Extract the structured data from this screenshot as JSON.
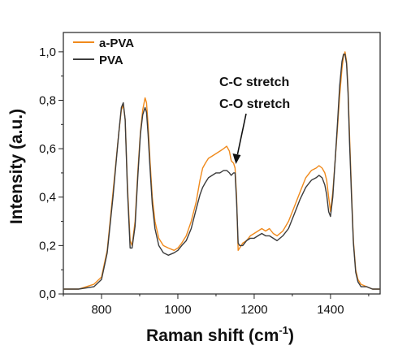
{
  "chart_data": {
    "type": "line",
    "xlabel": "Raman shift (cm",
    "xlabel_sup": "-1",
    "xlabel_close": ")",
    "ylabel": "Intensity (a.u.)",
    "xlim": [
      700,
      1530
    ],
    "ylim": [
      0,
      1.08
    ],
    "x_ticks": [
      800,
      1000,
      1200,
      1400
    ],
    "x_tick_labels": [
      "800",
      "1000",
      "1200",
      "1400"
    ],
    "y_ticks": [
      0,
      0.2,
      0.4,
      0.6,
      0.8,
      1.0
    ],
    "y_tick_labels": [
      "0,0",
      "0,2",
      "0,4",
      "0,6",
      "0,8",
      "1,0"
    ],
    "legend_position": "top-left",
    "grid": false,
    "series": [
      {
        "name": "a-PVA",
        "color": "#f08a1c",
        "x": [
          700,
          740,
          780,
          800,
          815,
          830,
          845,
          852,
          857,
          862,
          868,
          875,
          880,
          888,
          895,
          902,
          908,
          914,
          918,
          922,
          927,
          933,
          940,
          950,
          962,
          975,
          990,
          1000,
          1010,
          1022,
          1035,
          1048,
          1058,
          1065,
          1072,
          1080,
          1090,
          1100,
          1110,
          1120,
          1128,
          1135,
          1140,
          1146,
          1150,
          1154,
          1158,
          1162,
          1170,
          1180,
          1190,
          1200,
          1210,
          1220,
          1230,
          1240,
          1250,
          1260,
          1275,
          1290,
          1305,
          1320,
          1335,
          1350,
          1362,
          1370,
          1378,
          1385,
          1390,
          1395,
          1400,
          1406,
          1412,
          1418,
          1424,
          1430,
          1434,
          1438,
          1442,
          1446,
          1450,
          1455,
          1460,
          1466,
          1472,
          1480,
          1495,
          1510,
          1530
        ],
        "y": [
          0.02,
          0.02,
          0.04,
          0.07,
          0.18,
          0.42,
          0.66,
          0.76,
          0.78,
          0.72,
          0.45,
          0.22,
          0.2,
          0.3,
          0.5,
          0.67,
          0.76,
          0.81,
          0.79,
          0.7,
          0.55,
          0.4,
          0.3,
          0.23,
          0.2,
          0.19,
          0.18,
          0.19,
          0.21,
          0.24,
          0.3,
          0.38,
          0.47,
          0.52,
          0.54,
          0.56,
          0.57,
          0.58,
          0.59,
          0.6,
          0.61,
          0.59,
          0.55,
          0.54,
          0.52,
          0.4,
          0.18,
          0.19,
          0.21,
          0.22,
          0.24,
          0.25,
          0.26,
          0.27,
          0.26,
          0.27,
          0.25,
          0.24,
          0.26,
          0.3,
          0.36,
          0.42,
          0.48,
          0.51,
          0.52,
          0.53,
          0.52,
          0.5,
          0.47,
          0.4,
          0.34,
          0.42,
          0.55,
          0.68,
          0.82,
          0.93,
          0.98,
          1.0,
          0.96,
          0.85,
          0.65,
          0.42,
          0.22,
          0.1,
          0.06,
          0.04,
          0.03,
          0.02,
          0.02
        ]
      },
      {
        "name": "PVA",
        "color": "#3c3c3c",
        "x": [
          700,
          740,
          780,
          800,
          815,
          830,
          845,
          852,
          857,
          862,
          868,
          875,
          880,
          888,
          895,
          902,
          908,
          914,
          918,
          922,
          927,
          933,
          940,
          950,
          962,
          975,
          990,
          1000,
          1010,
          1022,
          1035,
          1048,
          1058,
          1065,
          1072,
          1080,
          1090,
          1100,
          1110,
          1120,
          1128,
          1135,
          1140,
          1146,
          1150,
          1154,
          1158,
          1162,
          1170,
          1180,
          1190,
          1200,
          1210,
          1220,
          1230,
          1240,
          1250,
          1260,
          1275,
          1290,
          1305,
          1320,
          1335,
          1350,
          1362,
          1370,
          1378,
          1385,
          1390,
          1395,
          1400,
          1406,
          1412,
          1418,
          1424,
          1430,
          1434,
          1438,
          1442,
          1446,
          1450,
          1455,
          1460,
          1466,
          1472,
          1480,
          1495,
          1510,
          1530
        ],
        "y": [
          0.02,
          0.02,
          0.03,
          0.06,
          0.17,
          0.4,
          0.66,
          0.77,
          0.79,
          0.72,
          0.43,
          0.19,
          0.19,
          0.28,
          0.48,
          0.66,
          0.74,
          0.77,
          0.75,
          0.66,
          0.52,
          0.37,
          0.27,
          0.2,
          0.17,
          0.16,
          0.17,
          0.18,
          0.2,
          0.22,
          0.27,
          0.35,
          0.41,
          0.44,
          0.46,
          0.48,
          0.49,
          0.5,
          0.5,
          0.51,
          0.51,
          0.5,
          0.49,
          0.5,
          0.5,
          0.38,
          0.21,
          0.2,
          0.2,
          0.22,
          0.23,
          0.23,
          0.24,
          0.25,
          0.24,
          0.24,
          0.23,
          0.22,
          0.24,
          0.27,
          0.33,
          0.39,
          0.44,
          0.47,
          0.48,
          0.49,
          0.48,
          0.45,
          0.41,
          0.34,
          0.32,
          0.4,
          0.55,
          0.7,
          0.86,
          0.96,
          0.99,
          0.99,
          0.95,
          0.83,
          0.62,
          0.4,
          0.21,
          0.09,
          0.05,
          0.03,
          0.03,
          0.02,
          0.02
        ]
      }
    ],
    "annotations": [
      {
        "lines": [
          "C-C stretch",
          "C-O stretch"
        ],
        "target_x": 1150,
        "target_y": 0.53
      }
    ]
  }
}
